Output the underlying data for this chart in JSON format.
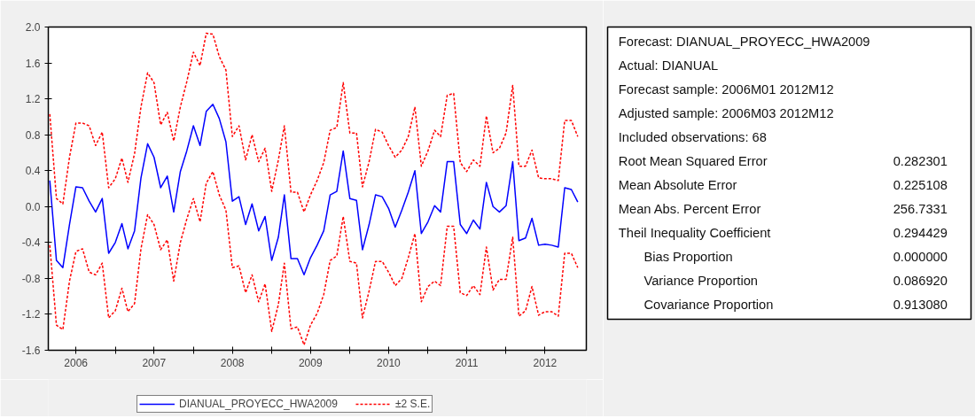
{
  "chart_data": [
    {
      "type": "line",
      "x": [
        "2006-03",
        "2006-04",
        "2006-05",
        "2006-06",
        "2006-07",
        "2006-08",
        "2006-09",
        "2006-10",
        "2006-11",
        "2006-12",
        "2007-01",
        "2007-02",
        "2007-03",
        "2007-04",
        "2007-05",
        "2007-06",
        "2007-07",
        "2007-08",
        "2007-09",
        "2007-10",
        "2007-11",
        "2007-12",
        "2008-01",
        "2008-02",
        "2008-03",
        "2008-04",
        "2008-05",
        "2008-06",
        "2008-07",
        "2008-08",
        "2008-09",
        "2008-10",
        "2008-11",
        "2008-12",
        "2009-01",
        "2009-02",
        "2009-03",
        "2009-04",
        "2009-05",
        "2009-06",
        "2009-07",
        "2009-08",
        "2009-09",
        "2009-10",
        "2009-11",
        "2009-12",
        "2010-01",
        "2010-02",
        "2010-03",
        "2010-04",
        "2010-05",
        "2010-06",
        "2010-07",
        "2010-08",
        "2010-09",
        "2010-10",
        "2010-11",
        "2010-12",
        "2011-01",
        "2011-02",
        "2011-03",
        "2011-04",
        "2011-05",
        "2011-06",
        "2011-07",
        "2011-08",
        "2011-09",
        "2011-10",
        "2011-11",
        "2011-12",
        "2012-01",
        "2012-02",
        "2012-03",
        "2012-04",
        "2012-05",
        "2012-06",
        "2012-07",
        "2012-08",
        "2012-09",
        "2012-10",
        "2012-11",
        "2012-12"
      ],
      "series": [
        {
          "name": "DIANUAL_PROYECC_HWA2009",
          "color": "#0000ff",
          "line_style": "solid",
          "values": [
            0.29,
            -0.6,
            -0.68,
            -0.2,
            0.22,
            0.21,
            0.06,
            -0.06,
            0.09,
            -0.52,
            -0.4,
            -0.19,
            -0.47,
            -0.27,
            0.32,
            0.7,
            0.55,
            0.21,
            0.34,
            -0.06,
            0.39,
            0.62,
            0.9,
            0.68,
            1.06,
            1.14,
            0.98,
            0.72,
            0.06,
            0.11,
            -0.2,
            0.03,
            -0.27,
            -0.11,
            -0.6,
            -0.34,
            0.13,
            -0.58,
            -0.58,
            -0.76,
            -0.57,
            -0.43,
            -0.27,
            0.13,
            0.17,
            0.62,
            0.09,
            0.07,
            -0.48,
            -0.2,
            0.13,
            0.11,
            -0.02,
            -0.23,
            -0.04,
            0.16,
            0.4,
            -0.3,
            -0.17,
            0.01,
            -0.06,
            0.5,
            0.5,
            -0.2,
            -0.3,
            -0.15,
            -0.25,
            0.27,
            0.0,
            -0.06,
            0.01,
            0.5,
            -0.38,
            -0.35,
            -0.13,
            -0.43,
            -0.42,
            -0.43,
            -0.45,
            0.21,
            0.19,
            0.05
          ]
        },
        {
          "name": "±2 S.E.",
          "color": "#ff0000",
          "line_style": "dashed",
          "values": [
            1.03,
            0.09,
            0.03,
            0.55,
            0.93,
            0.93,
            0.9,
            0.68,
            0.83,
            0.21,
            0.31,
            0.54,
            0.27,
            0.59,
            1.11,
            1.49,
            1.38,
            0.91,
            1.05,
            0.73,
            1.11,
            1.39,
            1.72,
            1.57,
            1.93,
            1.92,
            1.67,
            1.52,
            0.78,
            0.9,
            0.52,
            0.8,
            0.5,
            0.65,
            0.17,
            0.52,
            0.9,
            0.16,
            0.16,
            -0.06,
            0.13,
            0.29,
            0.49,
            0.85,
            0.88,
            1.38,
            0.82,
            0.82,
            0.22,
            0.5,
            0.86,
            0.83,
            0.68,
            0.55,
            0.63,
            0.78,
            1.11,
            0.45,
            0.62,
            0.85,
            0.78,
            1.24,
            1.26,
            0.49,
            0.39,
            0.52,
            0.45,
            1.01,
            0.6,
            0.65,
            0.82,
            1.35,
            0.45,
            0.45,
            0.63,
            0.32,
            0.31,
            0.31,
            0.29,
            0.96,
            0.96,
            0.78
          ]
        },
        {
          "color": "#ff0000",
          "line_style": "dashed",
          "values": [
            -0.43,
            -1.32,
            -1.37,
            -0.83,
            -0.5,
            -0.47,
            -0.73,
            -0.76,
            -0.63,
            -1.24,
            -1.16,
            -0.91,
            -1.17,
            -1.08,
            -0.47,
            -0.09,
            -0.2,
            -0.48,
            -0.37,
            -0.83,
            -0.4,
            -0.14,
            0.09,
            -0.17,
            0.26,
            0.39,
            0.13,
            -0.04,
            -0.68,
            -0.66,
            -0.96,
            -0.76,
            -1.06,
            -0.86,
            -1.39,
            -1.09,
            -0.63,
            -1.36,
            -1.34,
            -1.54,
            -1.32,
            -1.19,
            -0.98,
            -0.6,
            -0.55,
            -0.11,
            -0.61,
            -0.63,
            -1.24,
            -0.94,
            -0.61,
            -0.61,
            -0.73,
            -0.88,
            -0.8,
            -0.57,
            -0.3,
            -1.06,
            -0.89,
            -0.83,
            -0.88,
            -0.22,
            -0.22,
            -0.96,
            -0.99,
            -0.88,
            -0.98,
            -0.45,
            -0.93,
            -0.81,
            -0.81,
            -0.34,
            -1.22,
            -1.16,
            -0.89,
            -1.21,
            -1.17,
            -1.17,
            -1.22,
            -0.52,
            -0.52,
            -0.68
          ]
        }
      ],
      "xlim": [
        "2006-02-22",
        "2013-01-10"
      ],
      "xticks": [
        {
          "value": "2006-07-01",
          "label": "2006"
        },
        {
          "value": "2007-01-01",
          "label": null
        },
        {
          "value": "2007-07-01",
          "label": "2007"
        },
        {
          "value": "2008-01-01",
          "label": null
        },
        {
          "value": "2008-07-01",
          "label": "2008"
        },
        {
          "value": "2009-01-01",
          "label": null
        },
        {
          "value": "2009-07-01",
          "label": "2009"
        },
        {
          "value": "2010-01-01",
          "label": null
        },
        {
          "value": "2010-07-01",
          "label": "2010"
        },
        {
          "value": "2011-01-01",
          "label": null
        },
        {
          "value": "2011-07-01",
          "label": "2011"
        },
        {
          "value": "2012-01-01",
          "label": null
        },
        {
          "value": "2012-07-01",
          "label": "2012"
        }
      ],
      "ylim": [
        -1.6,
        2.0
      ],
      "yticks": [
        {
          "value": -1.6,
          "label": "-1.6"
        },
        {
          "value": -1.2,
          "label": "-1.2"
        },
        {
          "value": -0.8,
          "label": "-0.8"
        },
        {
          "value": -0.4,
          "label": "-0.4"
        },
        {
          "value": 0.0,
          "label": "0.0"
        },
        {
          "value": 0.4,
          "label": "0.4"
        },
        {
          "value": 0.8,
          "label": "0.8"
        },
        {
          "value": 1.2,
          "label": "1.2"
        },
        {
          "value": 1.6,
          "label": "1.6"
        },
        {
          "value": 2.0,
          "label": "2.0"
        }
      ],
      "grid": false,
      "legend": "bottom",
      "marker": "none"
    },
    {
      "type": "other",
      "annotations": [
        "Forecast: DIANUAL_PROYECC_HWA2009",
        "Actual: DIANUAL",
        "Forecast sample: 2006M01 2012M12",
        "Adjusted sample: 2006M03 2012M12",
        "Included observations: 68"
      ],
      "categories": [
        "Root Mean Squared Error",
        "Mean Absolute Error",
        "Mean Abs. Percent Error",
        "Theil Inequality Coefficient",
        "Bias Proportion",
        "Variance Proportion",
        "Covariance Proportion"
      ],
      "value_labels": [
        "0.282301",
        "0.225108",
        "256.7331",
        "0.294429",
        "0.000000",
        "0.086920",
        "0.913080"
      ]
    }
  ]
}
